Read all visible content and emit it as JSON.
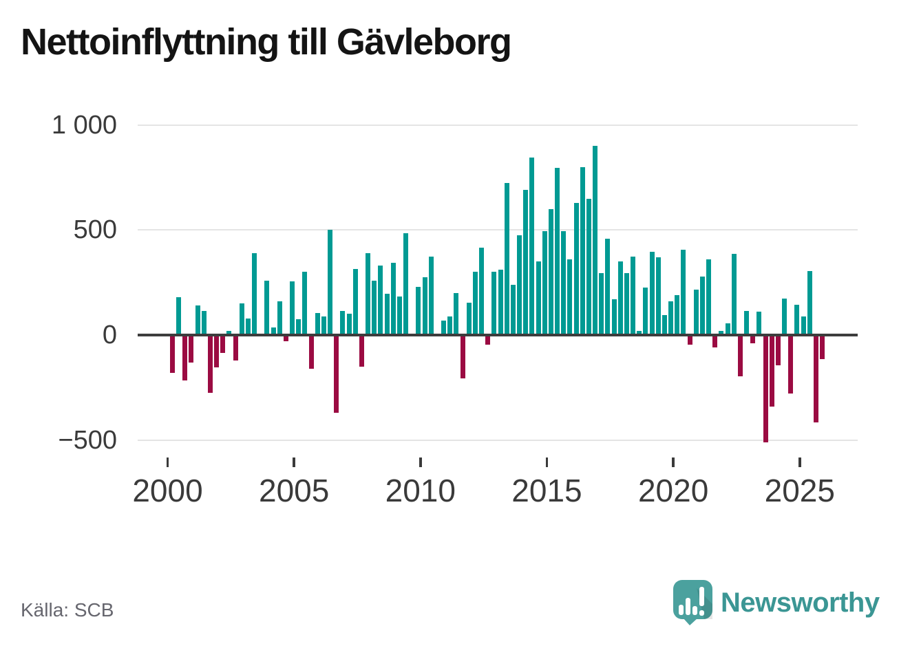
{
  "title": "Nettoinflyttning till Gävleborg",
  "source": "Källa: SCB",
  "brand": "Newsworthy",
  "colors": {
    "positive": "#009a93",
    "negative": "#9b0b42",
    "grid": "#e4e4e4",
    "zero_line": "#3d3d3d",
    "axis_label": "#3a3a3a",
    "title": "#141414",
    "source": "#66666e",
    "brand_text": "#3b9694",
    "brand_mark": "#4ba19e"
  },
  "chart_data": {
    "type": "bar",
    "title": "Nettoinflyttning till Gävleborg",
    "xlabel": "",
    "ylabel": "",
    "frequency": "quarterly",
    "x_start": "2000Q1",
    "x_end": "2025Q4",
    "grid": true,
    "legend": false,
    "ylim": [
      -560,
      1060
    ],
    "y_ticks": [
      {
        "label": "1 000",
        "value": 1000
      },
      {
        "label": "500",
        "value": 500
      },
      {
        "label": "0",
        "value": 0
      },
      {
        "label": "−500",
        "value": -500
      }
    ],
    "x_ticks": [
      {
        "label": "2000"
      },
      {
        "label": "2005"
      },
      {
        "label": "2010"
      },
      {
        "label": "2015"
      },
      {
        "label": "2020"
      },
      {
        "label": "2025"
      }
    ],
    "categories": [
      "2000Q1",
      "2000Q2",
      "2000Q3",
      "2000Q4",
      "2001Q1",
      "2001Q2",
      "2001Q3",
      "2001Q4",
      "2002Q1",
      "2002Q2",
      "2002Q3",
      "2002Q4",
      "2003Q1",
      "2003Q2",
      "2003Q3",
      "2003Q4",
      "2004Q1",
      "2004Q2",
      "2004Q3",
      "2004Q4",
      "2005Q1",
      "2005Q2",
      "2005Q3",
      "2005Q4",
      "2006Q1",
      "2006Q2",
      "2006Q3",
      "2006Q4",
      "2007Q1",
      "2007Q2",
      "2007Q3",
      "2007Q4",
      "2008Q1",
      "2008Q2",
      "2008Q3",
      "2008Q4",
      "2009Q1",
      "2009Q2",
      "2009Q3",
      "2009Q4",
      "2010Q1",
      "2010Q2",
      "2010Q3",
      "2010Q4",
      "2011Q1",
      "2011Q2",
      "2011Q3",
      "2011Q4",
      "2012Q1",
      "2012Q2",
      "2012Q3",
      "2012Q4",
      "2013Q1",
      "2013Q2",
      "2013Q3",
      "2013Q4",
      "2014Q1",
      "2014Q2",
      "2014Q3",
      "2014Q4",
      "2015Q1",
      "2015Q2",
      "2015Q3",
      "2015Q4",
      "2016Q1",
      "2016Q2",
      "2016Q3",
      "2016Q4",
      "2017Q1",
      "2017Q2",
      "2017Q3",
      "2017Q4",
      "2018Q1",
      "2018Q2",
      "2018Q3",
      "2018Q4",
      "2019Q1",
      "2019Q2",
      "2019Q3",
      "2019Q4",
      "2020Q1",
      "2020Q2",
      "2020Q3",
      "2020Q4",
      "2021Q1",
      "2021Q2",
      "2021Q3",
      "2021Q4",
      "2022Q1",
      "2022Q2",
      "2022Q3",
      "2022Q4",
      "2023Q1",
      "2023Q2",
      "2023Q3",
      "2023Q4",
      "2024Q1",
      "2024Q2",
      "2024Q3",
      "2024Q4",
      "2025Q1",
      "2025Q2",
      "2025Q3",
      "2025Q4"
    ],
    "values": [
      -180,
      180,
      -215,
      -130,
      140,
      115,
      -275,
      -155,
      -85,
      20,
      -120,
      150,
      80,
      390,
      0,
      260,
      35,
      160,
      -30,
      255,
      75,
      300,
      -160,
      105,
      90,
      500,
      -370,
      115,
      100,
      315,
      -150,
      390,
      260,
      330,
      195,
      345,
      185,
      485,
      0,
      230,
      275,
      375,
      0,
      70,
      90,
      200,
      -205,
      155,
      300,
      415,
      -45,
      300,
      310,
      725,
      240,
      475,
      690,
      845,
      350,
      495,
      600,
      795,
      495,
      360,
      630,
      800,
      650,
      900,
      295,
      460,
      170,
      350,
      295,
      375,
      20,
      225,
      395,
      370,
      95,
      160,
      190,
      405,
      -45,
      215,
      280,
      360,
      -60,
      20,
      55,
      385,
      -195,
      115,
      -40,
      110,
      -510,
      -340,
      -145,
      175,
      -280,
      145,
      90,
      305,
      -415,
      -115
    ]
  }
}
